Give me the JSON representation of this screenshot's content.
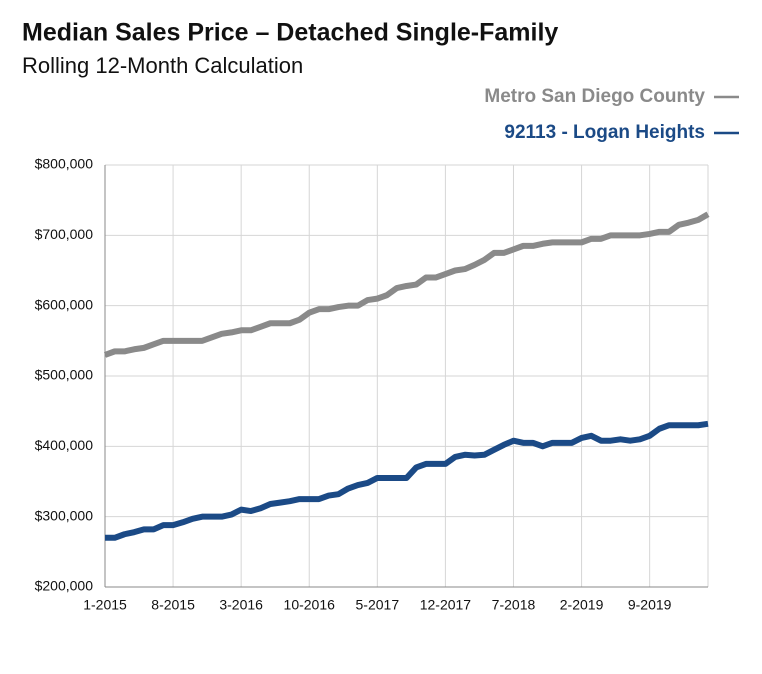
{
  "chart_data": {
    "type": "line",
    "title": "Median Sales Price – Detached Single-Family",
    "subtitle": "Rolling 12-Month Calculation",
    "categories": [
      "1-2015",
      null,
      null,
      null,
      null,
      null,
      null,
      "8-2015",
      null,
      null,
      null,
      null,
      null,
      null,
      "3-2016",
      null,
      null,
      null,
      null,
      null,
      null,
      "10-2016",
      null,
      null,
      null,
      null,
      null,
      null,
      "5-2017",
      null,
      null,
      null,
      null,
      null,
      null,
      "12-2017",
      null,
      null,
      null,
      null,
      null,
      null,
      "7-2018",
      null,
      null,
      null,
      null,
      null,
      null,
      "2-2019",
      null,
      null,
      null,
      null,
      null,
      null,
      "9-2019",
      null,
      null,
      null,
      null,
      null,
      null
    ],
    "series": [
      {
        "name": "Metro San Diego County",
        "color": "#8a8a8a",
        "values": [
          530000,
          535000,
          535000,
          538000,
          540000,
          545000,
          550000,
          550000,
          550000,
          550000,
          550000,
          555000,
          560000,
          562000,
          565000,
          565000,
          570000,
          575000,
          575000,
          575000,
          580000,
          590000,
          595000,
          595000,
          598000,
          600000,
          600000,
          608000,
          610000,
          615000,
          625000,
          628000,
          630000,
          640000,
          640000,
          645000,
          650000,
          652000,
          658000,
          665000,
          675000,
          675000,
          680000,
          685000,
          685000,
          688000,
          690000,
          690000,
          690000,
          690000,
          695000,
          695000,
          700000,
          700000,
          700000,
          700000,
          702000,
          705000,
          705000,
          715000,
          718000,
          722000,
          730000
        ]
      },
      {
        "name": "92113 - Logan Heights",
        "color": "#1b4a86",
        "values": [
          270000,
          270000,
          275000,
          278000,
          282000,
          282000,
          288000,
          288000,
          292000,
          297000,
          300000,
          300000,
          300000,
          303000,
          310000,
          308000,
          312000,
          318000,
          320000,
          322000,
          325000,
          325000,
          325000,
          330000,
          332000,
          340000,
          345000,
          348000,
          355000,
          355000,
          355000,
          355000,
          370000,
          375000,
          375000,
          375000,
          385000,
          388000,
          387000,
          388000,
          395000,
          402000,
          408000,
          405000,
          405000,
          400000,
          405000,
          405000,
          405000,
          412000,
          415000,
          408000,
          408000,
          410000,
          408000,
          410000,
          415000,
          425000,
          430000,
          430000,
          430000,
          430000,
          432000
        ]
      }
    ],
    "ylim": [
      200000,
      800000
    ],
    "yticks": [
      {
        "value": 200000,
        "label": "$200,000"
      },
      {
        "value": 300000,
        "label": "$300,000"
      },
      {
        "value": 400000,
        "label": "$400,000"
      },
      {
        "value": 500000,
        "label": "$500,000"
      },
      {
        "value": 600000,
        "label": "$600,000"
      },
      {
        "value": 700000,
        "label": "$700,000"
      },
      {
        "value": 800000,
        "label": "$800,000"
      }
    ],
    "grid": true,
    "legend": "top-right"
  }
}
